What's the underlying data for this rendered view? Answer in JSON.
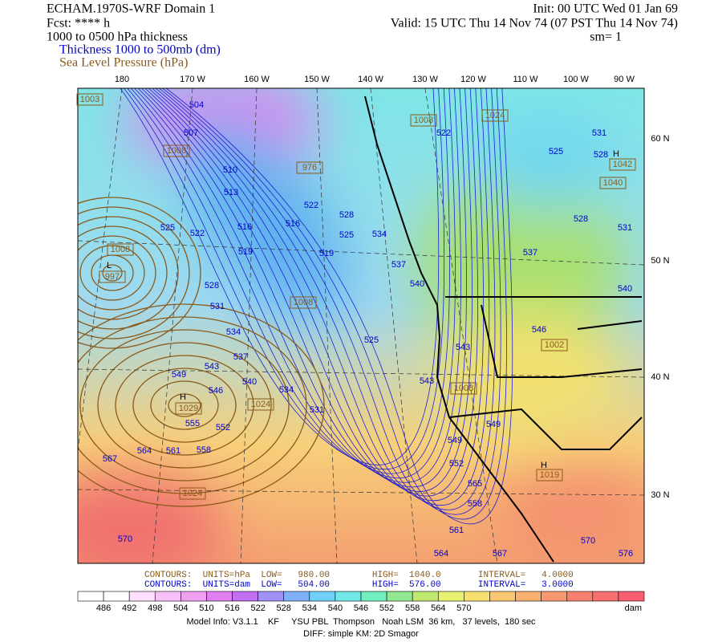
{
  "header": {
    "model": "ECHAM.1970S-WRF Domain 1",
    "fcst": "Fcst: **** h",
    "init": "Init: 00 UTC Wed 01 Jan 69",
    "valid": "Valid: 15 UTC Thu 14 Nov 74 (07 PST Thu 14 Nov 74)",
    "sm": "sm= 1",
    "field": "1000 to 0500 hPa thickness",
    "thickness": "Thickness 1000 to 500mb (dm)",
    "slp": "Sea Level Pressure (hPa)"
  },
  "lon_labels": [
    "180",
    "170 W",
    "160 W",
    "150 W",
    "140 W",
    "130 W",
    "120 W",
    "110 W",
    "100 W",
    "90 W"
  ],
  "lat_labels": [
    "60 N",
    "50 N",
    "40 N",
    "30 N"
  ],
  "thickness_labels": [
    "504",
    "507",
    "510",
    "513",
    "516",
    "516",
    "519",
    "519",
    "522",
    "522",
    "525",
    "525",
    "525",
    "528",
    "528",
    "531",
    "531",
    "534",
    "534",
    "534",
    "537",
    "537",
    "540",
    "540",
    "543",
    "543",
    "543",
    "546",
    "546",
    "549",
    "549",
    "549",
    "552",
    "552",
    "555",
    "558",
    "558",
    "561",
    "561",
    "564",
    "564",
    "567",
    "567",
    "570",
    "570",
    "531",
    "525",
    "528",
    "528",
    "537",
    "540",
    "531",
    "522",
    "576",
    "565"
  ],
  "pressure_labels": [
    "1003",
    "1008",
    "976",
    "1008",
    "1024",
    "1040",
    "1042",
    "1008",
    "997",
    "1008",
    "1024",
    "1029",
    "1024",
    "1008",
    "1002",
    "1019"
  ],
  "pressure_marks": [
    "L",
    "H",
    "H",
    "H"
  ],
  "contour_info": {
    "slp": "CONTOURS:  UNITS=hPa  LOW=   980.00        HIGH=  1040.0       INTERVAL=   4.0000",
    "thickness": "CONTOURS:  UNITS=dam  LOW=   504.00        HIGH=  576.00       INTERVAL=   3.0000"
  },
  "colorbar": {
    "labels": [
      "486",
      "492",
      "498",
      "504",
      "510",
      "516",
      "522",
      "528",
      "534",
      "540",
      "546",
      "552",
      "558",
      "564",
      "570"
    ],
    "unit": "dam"
  },
  "footer": {
    "line1": "Model Info: V3.1.1    KF     YSU PBL  Thompson   Noah LSM  36 km,   37 levels,  180 sec",
    "line2": "DIFF: simple KM: 2D Smagor"
  }
}
